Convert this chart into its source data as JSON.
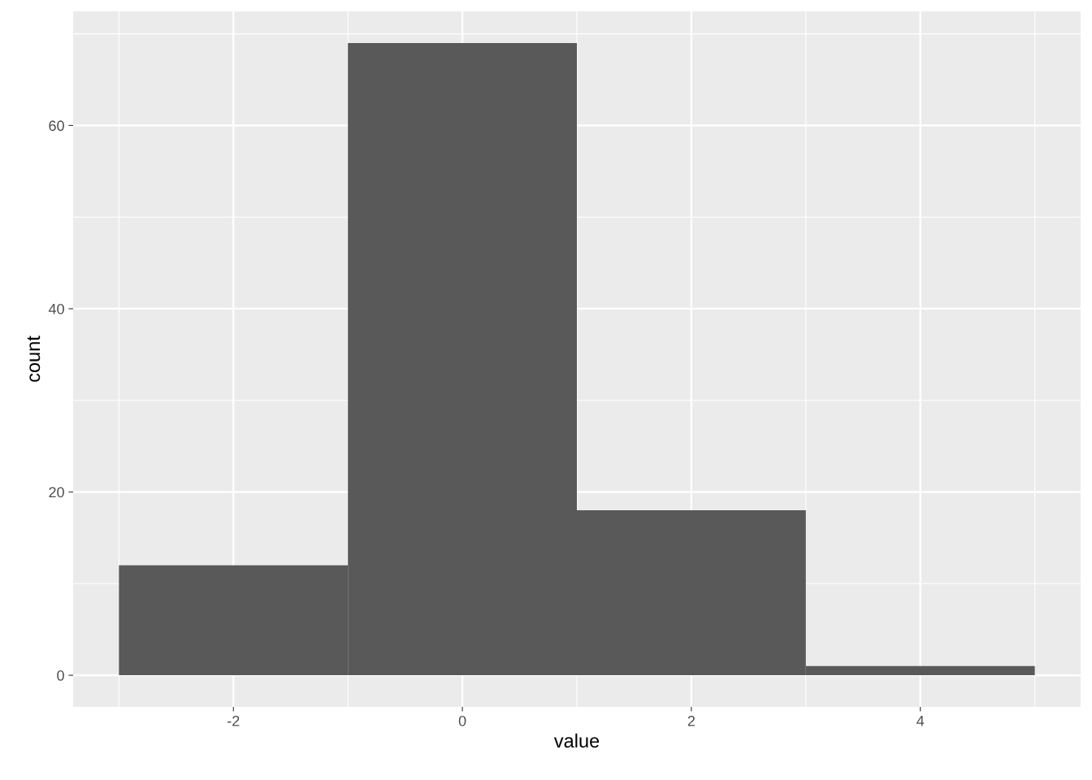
{
  "chart_data": {
    "type": "histogram",
    "xlabel": "value",
    "ylabel": "count",
    "bins": [
      -3,
      -1,
      1,
      3,
      5
    ],
    "values": [
      12,
      69,
      18,
      1
    ],
    "color": "#595959",
    "xlim": [
      -3.4,
      5.4
    ],
    "ylim": [
      -3.45,
      72.45
    ],
    "xticks": [
      -2,
      0,
      2,
      4
    ],
    "yticks": [
      0,
      20,
      40,
      60
    ],
    "grid": true
  }
}
